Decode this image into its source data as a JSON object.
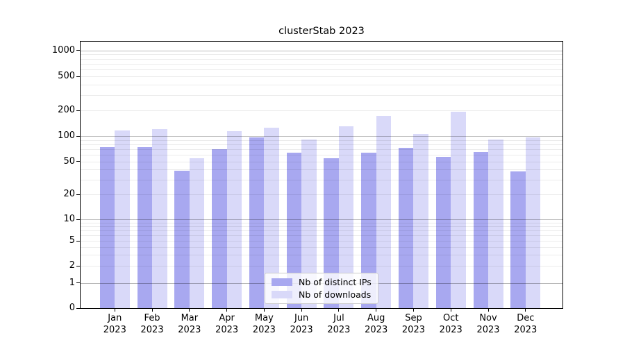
{
  "title": "clusterStab 2023",
  "legend": {
    "items": [
      {
        "label": "Nb of distinct IPs",
        "color": "#a8a8f0"
      },
      {
        "label": "Nb of downloads",
        "color": "#d9d9f9"
      }
    ]
  },
  "chart_data": {
    "type": "bar",
    "title": "clusterStab 2023",
    "categories": [
      "Jan 2023",
      "Feb 2023",
      "Mar 2023",
      "Apr 2023",
      "May 2023",
      "Jun 2023",
      "Jul 2023",
      "Aug 2023",
      "Sep 2023",
      "Oct 2023",
      "Nov 2023",
      "Dec 2023"
    ],
    "series": [
      {
        "name": "Nb of distinct IPs",
        "color": "#a8a8f0",
        "values": [
          74,
          74,
          39,
          70,
          96,
          64,
          55,
          63,
          73,
          57,
          65,
          38
        ]
      },
      {
        "name": "Nb of downloads",
        "color": "#d9d9f9",
        "values": [
          117,
          121,
          55,
          113,
          126,
          91,
          131,
          171,
          106,
          193,
          91,
          97
        ]
      }
    ],
    "xlabel": "",
    "ylabel": "",
    "yscale": "symlog",
    "yticks": [
      0,
      1,
      2,
      5,
      10,
      20,
      50,
      100,
      200,
      500,
      1000
    ],
    "ylim": [
      0,
      1270
    ],
    "grid": "both",
    "grid_major_color": "#bababa",
    "grid_minor_color": "#ebebeb",
    "legend_position": "lower center"
  }
}
